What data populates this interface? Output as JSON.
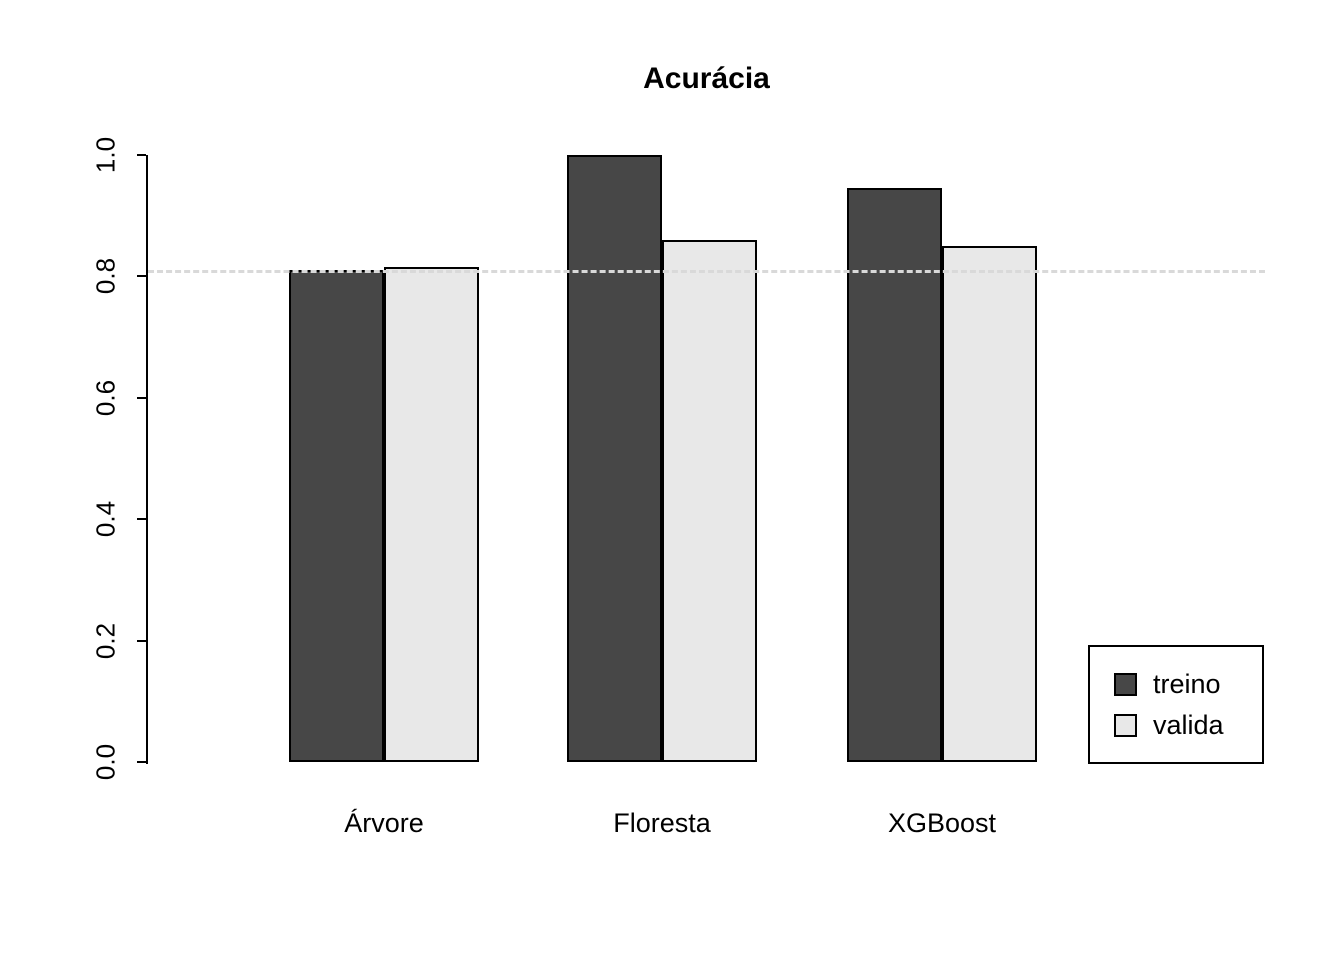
{
  "chart_data": {
    "type": "bar",
    "title": "Acurácia",
    "categories": [
      "Árvore",
      "Floresta",
      "XGBoost"
    ],
    "series": [
      {
        "name": "treino",
        "color": "#474747",
        "values": [
          0.81,
          1.0,
          0.945
        ]
      },
      {
        "name": "valida",
        "color": "#e8e8e8",
        "values": [
          0.815,
          0.86,
          0.85
        ]
      }
    ],
    "ylim": [
      0.0,
      1.0
    ],
    "yticks": [
      0.0,
      0.2,
      0.4,
      0.6,
      0.8,
      1.0
    ],
    "ytick_labels": [
      "0.0",
      "0.2",
      "0.4",
      "0.6",
      "0.8",
      "1.0"
    ],
    "reference_line": {
      "value": 0.81,
      "style": "dashed",
      "color": "#d9d9d9"
    },
    "grid": false,
    "legend": {
      "position": "bottom-right",
      "entries": [
        "treino",
        "valida"
      ]
    }
  }
}
